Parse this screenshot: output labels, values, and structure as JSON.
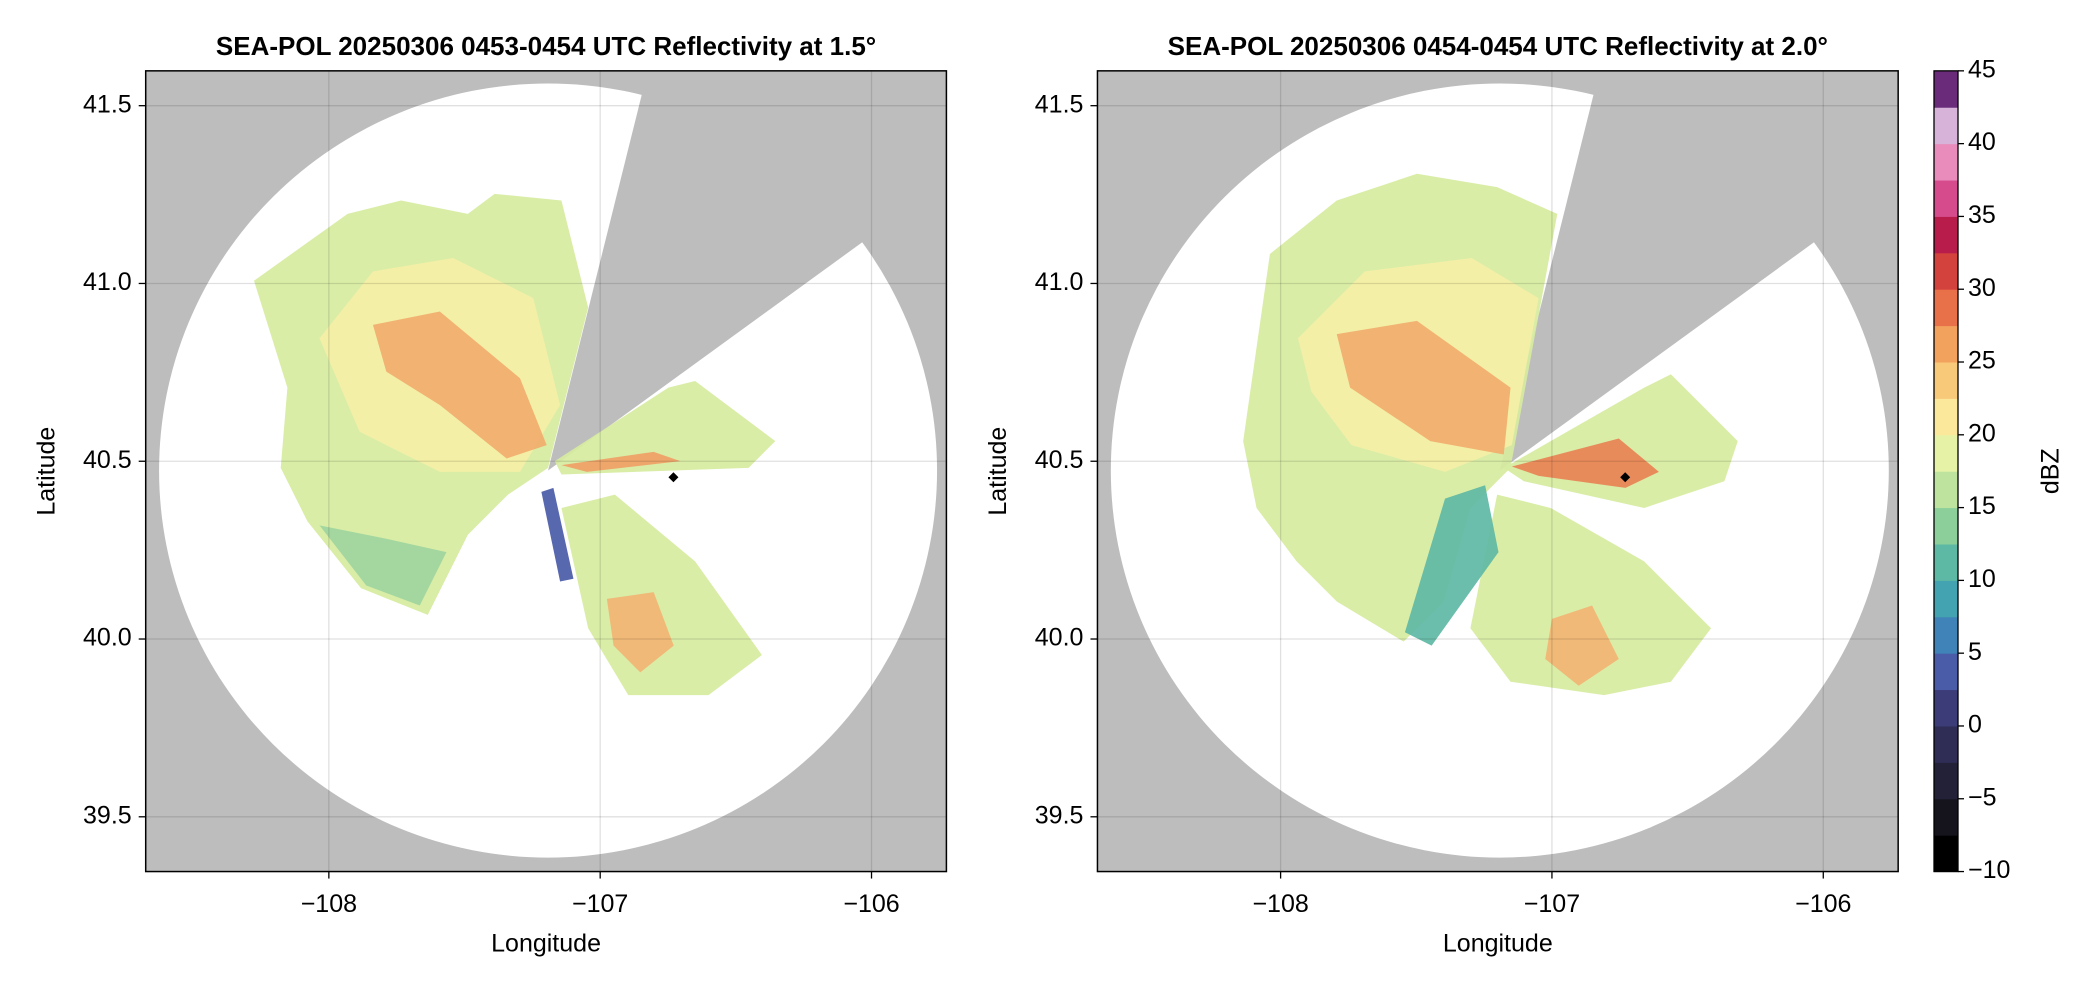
{
  "chart_data": [
    {
      "type": "ppi",
      "title": "SEA-POL 20250306 0453-0454 UTC Reflectivity at 1.5°",
      "x_label": "Longitude",
      "y_label": "Latitude",
      "xlim": [
        -108.675,
        -105.724
      ],
      "ylim": [
        39.346,
        41.598
      ],
      "xticks": [
        {
          "value": -108,
          "label": "−108"
        },
        {
          "value": -107,
          "label": "−107"
        },
        {
          "value": -106,
          "label": "−106"
        }
      ],
      "yticks": [
        39.5,
        {
          "value": 40,
          "label": "40.0"
        },
        40.5,
        {
          "value": 41,
          "label": "41.0"
        },
        41.5
      ],
      "grid": true,
      "marker": {
        "x": -106.73,
        "y": 40.455
      }
    },
    {
      "type": "ppi",
      "title": "SEA-POL 20250306 0454-0454 UTC Reflectivity at 2.0°",
      "x_label": "Longitude",
      "y_label": "Latitude",
      "xlim": [
        -108.675,
        -105.724
      ],
      "ylim": [
        39.346,
        41.598
      ],
      "xticks": [
        {
          "value": -108,
          "label": "−108"
        },
        {
          "value": -107,
          "label": "−107"
        },
        {
          "value": -106,
          "label": "−106"
        }
      ],
      "yticks": [
        39.5,
        {
          "value": 40,
          "label": "40.0"
        },
        40.5,
        {
          "value": 41,
          "label": "41.0"
        },
        41.5
      ],
      "grid": true,
      "marker": {
        "x": -106.73,
        "y": 40.455
      },
      "colorbar": {
        "label": "dBZ",
        "lim": [
          -10,
          45
        ],
        "ticks": [
          {
            "value": -10,
            "label": "−10"
          },
          {
            "value": -5,
            "label": "−5"
          },
          0,
          5,
          10,
          15,
          20,
          25,
          30,
          35,
          40,
          45
        ],
        "colors": [
          "#000000",
          "#15141d",
          "#222137",
          "#2f2d55",
          "#3b3c78",
          "#4a5ba8",
          "#3f83b8",
          "#44a3b0",
          "#5eb9a4",
          "#8ccf9b",
          "#bde39e",
          "#e6f3a6",
          "#fbe89a",
          "#f9c97a",
          "#f3a25e",
          "#e8714a",
          "#d4423e",
          "#b81c4a",
          "#d64b8c",
          "#e98cbc",
          "#d8b3d9",
          "#6a2c7a"
        ]
      }
    }
  ]
}
